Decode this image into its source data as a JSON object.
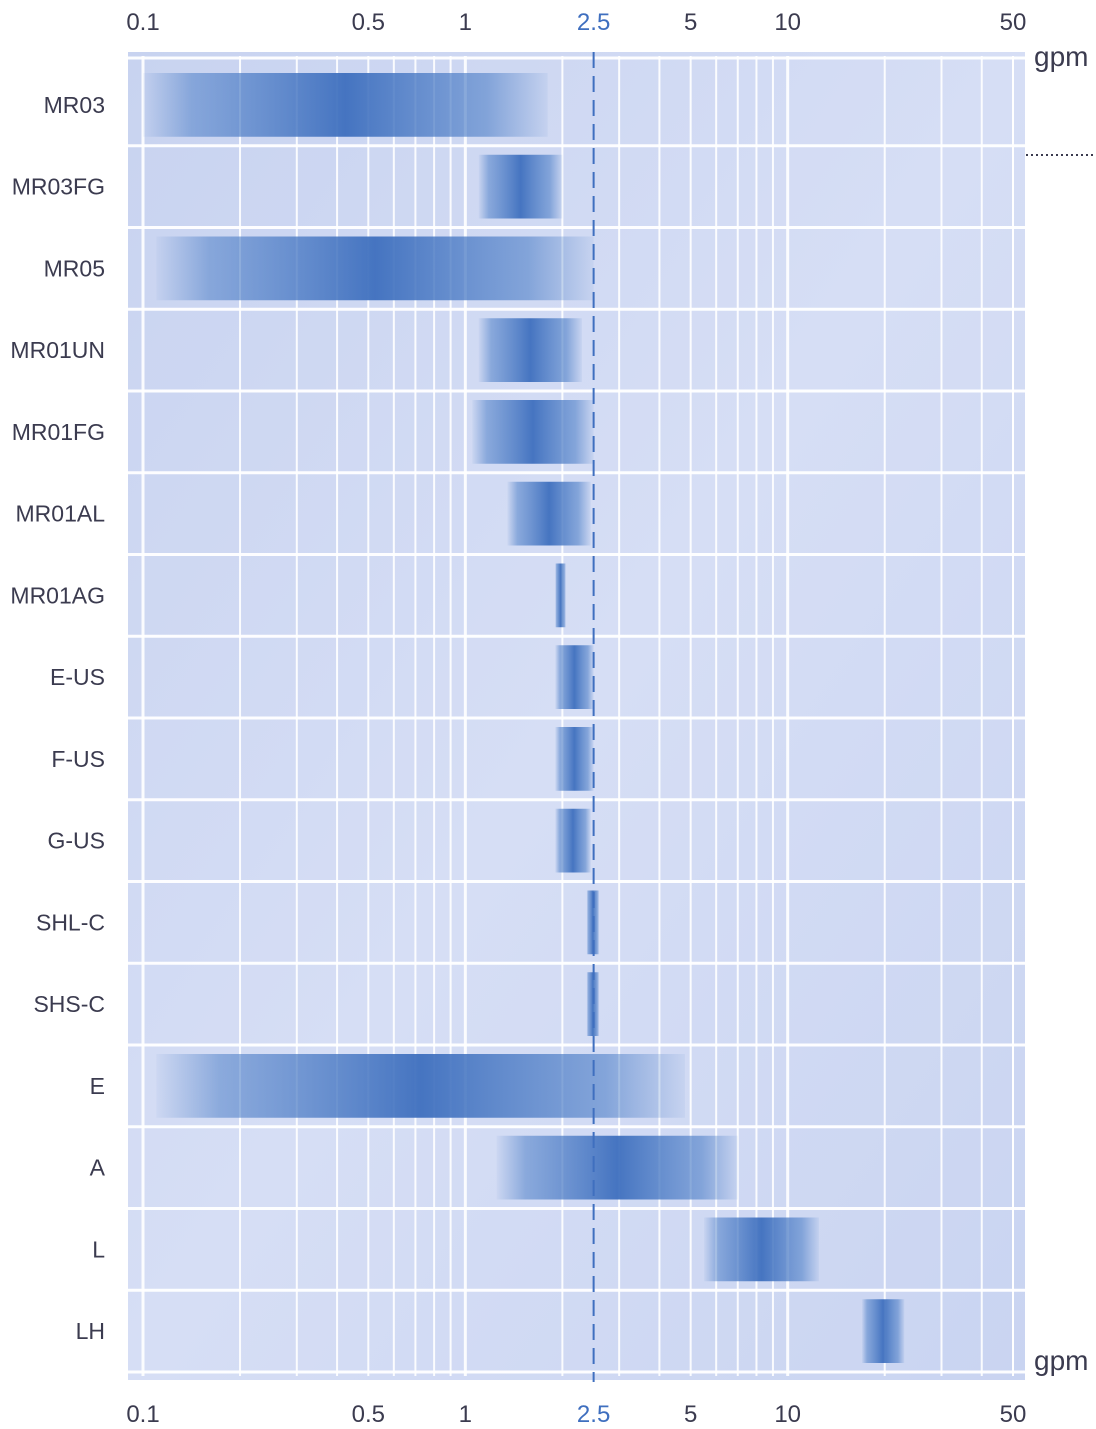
{
  "chart_data": {
    "type": "bar",
    "subtype": "floating-range",
    "x_scale": "log",
    "xlim": [
      0.1,
      50
    ],
    "x_ticks": [
      "0.1",
      "0.5",
      "1",
      "2.5",
      "5",
      "10",
      "50"
    ],
    "unit_label": "gpm",
    "reference_line": {
      "x": 2.5,
      "label": "2.5",
      "style": "dashed",
      "color": "#3f6fbf"
    },
    "grid": true,
    "categories": [
      "MR03",
      "MR03FG",
      "MR05",
      "MR01UN",
      "MR01FG",
      "MR01AL",
      "MR01AG",
      "E-US",
      "F-US",
      "G-US",
      "SHL-C",
      "SHS-C",
      "E",
      "A",
      "L",
      "LH"
    ],
    "ranges": [
      [
        0.1,
        1.8
      ],
      [
        1.1,
        2.0
      ],
      [
        0.11,
        2.5
      ],
      [
        1.1,
        2.3
      ],
      [
        1.05,
        2.5
      ],
      [
        1.35,
        2.45
      ],
      [
        1.9,
        2.05
      ],
      [
        1.9,
        2.5
      ],
      [
        1.9,
        2.5
      ],
      [
        1.9,
        2.45
      ],
      [
        2.38,
        2.6
      ],
      [
        2.38,
        2.6
      ],
      [
        0.11,
        4.8
      ],
      [
        1.25,
        7.0
      ],
      [
        5.5,
        12.5
      ],
      [
        17.0,
        23.0
      ]
    ]
  },
  "colors": {
    "panel": "#cfd9f3",
    "grid": "#ffffff",
    "bar": "#4f80c8",
    "reference": "#3f6fbf",
    "text": "#3b3b4f"
  }
}
